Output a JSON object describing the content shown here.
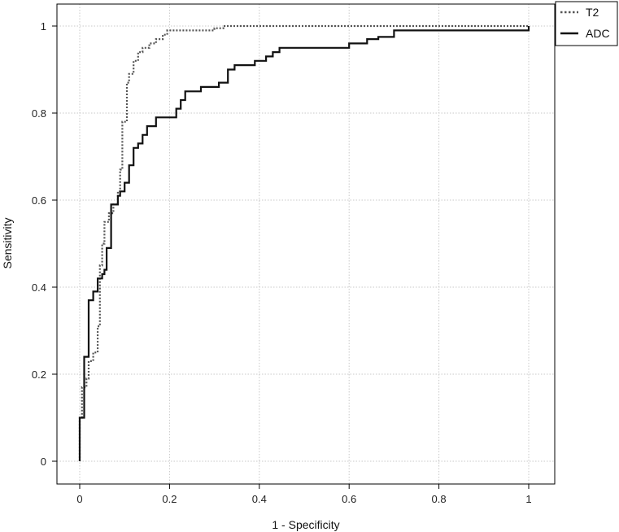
{
  "chart_data": {
    "type": "line",
    "title": "",
    "xlabel": "1 - Specificity",
    "ylabel": "Sensitivity",
    "xlim": [
      0,
      1
    ],
    "ylim": [
      0,
      1
    ],
    "xticks": [
      0,
      0.2,
      0.4,
      0.6,
      0.8,
      1
    ],
    "yticks": [
      0,
      0.2,
      0.4,
      0.6,
      0.8,
      1
    ],
    "xtick_labels": [
      "0",
      "0.2",
      "0.4",
      "0.6",
      "0.8",
      "1"
    ],
    "ytick_labels": [
      "0",
      "0.2",
      "0.4",
      "0.6",
      "0.8",
      "1"
    ],
    "grid": true,
    "legend_position": "top-right",
    "series": [
      {
        "name": "T2",
        "style": "dotted",
        "color": "#555555",
        "points": [
          [
            0,
            0
          ],
          [
            0,
            0.1
          ],
          [
            0.005,
            0.1
          ],
          [
            0.005,
            0.17
          ],
          [
            0.015,
            0.17
          ],
          [
            0.015,
            0.19
          ],
          [
            0.02,
            0.19
          ],
          [
            0.02,
            0.23
          ],
          [
            0.03,
            0.23
          ],
          [
            0.03,
            0.25
          ],
          [
            0.04,
            0.25
          ],
          [
            0.04,
            0.31
          ],
          [
            0.045,
            0.31
          ],
          [
            0.045,
            0.45
          ],
          [
            0.05,
            0.45
          ],
          [
            0.05,
            0.5
          ],
          [
            0.055,
            0.5
          ],
          [
            0.055,
            0.55
          ],
          [
            0.065,
            0.55
          ],
          [
            0.065,
            0.57
          ],
          [
            0.075,
            0.57
          ],
          [
            0.075,
            0.59
          ],
          [
            0.085,
            0.59
          ],
          [
            0.085,
            0.62
          ],
          [
            0.09,
            0.62
          ],
          [
            0.09,
            0.67
          ],
          [
            0.095,
            0.67
          ],
          [
            0.095,
            0.78
          ],
          [
            0.105,
            0.78
          ],
          [
            0.105,
            0.87
          ],
          [
            0.11,
            0.87
          ],
          [
            0.11,
            0.89
          ],
          [
            0.12,
            0.89
          ],
          [
            0.12,
            0.92
          ],
          [
            0.13,
            0.92
          ],
          [
            0.13,
            0.94
          ],
          [
            0.14,
            0.94
          ],
          [
            0.14,
            0.95
          ],
          [
            0.155,
            0.95
          ],
          [
            0.155,
            0.96
          ],
          [
            0.17,
            0.96
          ],
          [
            0.17,
            0.97
          ],
          [
            0.185,
            0.97
          ],
          [
            0.185,
            0.98
          ],
          [
            0.195,
            0.98
          ],
          [
            0.195,
            0.99
          ],
          [
            0.3,
            0.99
          ],
          [
            0.3,
            0.995
          ],
          [
            0.32,
            0.995
          ],
          [
            0.32,
            1
          ],
          [
            1,
            1
          ]
        ]
      },
      {
        "name": "ADC",
        "style": "solid",
        "color": "#111111",
        "points": [
          [
            0,
            0
          ],
          [
            0,
            0.1
          ],
          [
            0.01,
            0.1
          ],
          [
            0.01,
            0.24
          ],
          [
            0.02,
            0.24
          ],
          [
            0.02,
            0.37
          ],
          [
            0.03,
            0.37
          ],
          [
            0.03,
            0.39
          ],
          [
            0.04,
            0.39
          ],
          [
            0.04,
            0.42
          ],
          [
            0.05,
            0.42
          ],
          [
            0.05,
            0.43
          ],
          [
            0.055,
            0.43
          ],
          [
            0.055,
            0.44
          ],
          [
            0.06,
            0.44
          ],
          [
            0.06,
            0.49
          ],
          [
            0.07,
            0.49
          ],
          [
            0.07,
            0.59
          ],
          [
            0.085,
            0.59
          ],
          [
            0.085,
            0.61
          ],
          [
            0.09,
            0.61
          ],
          [
            0.09,
            0.62
          ],
          [
            0.1,
            0.62
          ],
          [
            0.1,
            0.64
          ],
          [
            0.11,
            0.64
          ],
          [
            0.11,
            0.68
          ],
          [
            0.12,
            0.68
          ],
          [
            0.12,
            0.72
          ],
          [
            0.13,
            0.72
          ],
          [
            0.13,
            0.73
          ],
          [
            0.14,
            0.73
          ],
          [
            0.14,
            0.75
          ],
          [
            0.15,
            0.75
          ],
          [
            0.15,
            0.77
          ],
          [
            0.17,
            0.77
          ],
          [
            0.17,
            0.79
          ],
          [
            0.215,
            0.79
          ],
          [
            0.215,
            0.81
          ],
          [
            0.225,
            0.81
          ],
          [
            0.225,
            0.83
          ],
          [
            0.235,
            0.83
          ],
          [
            0.235,
            0.85
          ],
          [
            0.27,
            0.85
          ],
          [
            0.27,
            0.86
          ],
          [
            0.31,
            0.86
          ],
          [
            0.31,
            0.87
          ],
          [
            0.33,
            0.87
          ],
          [
            0.33,
            0.9
          ],
          [
            0.345,
            0.9
          ],
          [
            0.345,
            0.91
          ],
          [
            0.39,
            0.91
          ],
          [
            0.39,
            0.92
          ],
          [
            0.415,
            0.92
          ],
          [
            0.415,
            0.93
          ],
          [
            0.43,
            0.93
          ],
          [
            0.43,
            0.94
          ],
          [
            0.445,
            0.94
          ],
          [
            0.445,
            0.95
          ],
          [
            0.6,
            0.95
          ],
          [
            0.6,
            0.96
          ],
          [
            0.64,
            0.96
          ],
          [
            0.64,
            0.97
          ],
          [
            0.665,
            0.97
          ],
          [
            0.665,
            0.975
          ],
          [
            0.7,
            0.975
          ],
          [
            0.7,
            0.99
          ],
          [
            1,
            0.99
          ],
          [
            1,
            1
          ]
        ]
      }
    ]
  }
}
